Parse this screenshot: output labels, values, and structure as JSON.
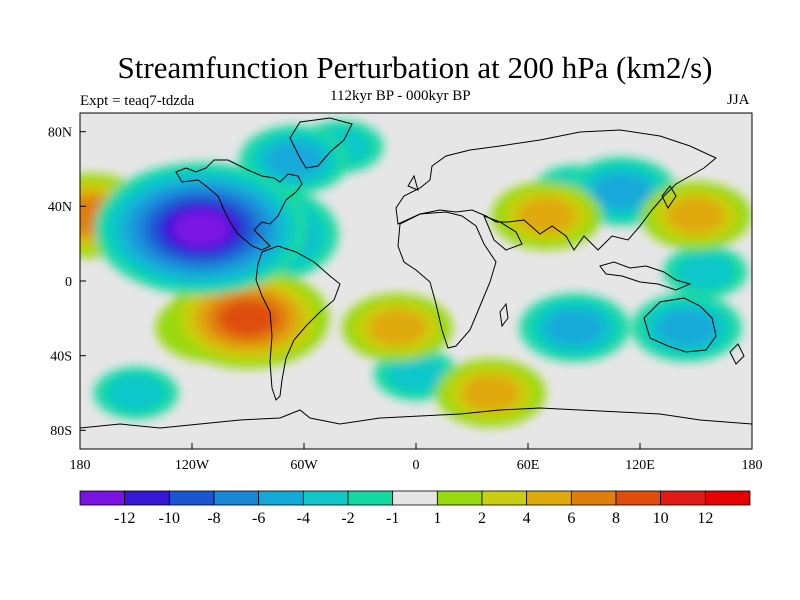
{
  "title": "Streamfunction Perturbation at 200 hPa (km2/s)",
  "experiment": "Expt = teaq7-tdzda",
  "period": "112kyr BP - 000kyr BP",
  "season": "JJA",
  "lat_labels": [
    "80N",
    "40N",
    "0",
    "40S",
    "80S"
  ],
  "lon_labels": [
    "180",
    "120W",
    "60W",
    "0",
    "60E",
    "120E",
    "180"
  ],
  "colorbar": {
    "labels": [
      "-12",
      "-10",
      "-8",
      "-6",
      "-4",
      "-2",
      "-1",
      "1",
      "2",
      "4",
      "6",
      "8",
      "10",
      "12"
    ],
    "levels": [
      -12,
      -10,
      -8,
      -6,
      -4,
      -2,
      -1,
      1,
      2,
      4,
      6,
      8,
      10,
      12
    ],
    "colors": [
      "#7a12e2",
      "#3717d6",
      "#1a56d2",
      "#1a86d8",
      "#12a9d9",
      "#11c7ca",
      "#13d9a1",
      "#e6e6e6",
      "#97d90f",
      "#c9cf10",
      "#e0a90c",
      "#df7e0a",
      "#df4d0a",
      "#e01b14",
      "#e70000"
    ]
  },
  "chart_data": {
    "type": "contour-map",
    "variable": "Streamfunction Perturbation at 200 hPa",
    "units": "km2/s",
    "xlim": [
      -180,
      180
    ],
    "ylim": [
      -90,
      90
    ],
    "lon_ticks": [
      -180,
      -120,
      -60,
      0,
      60,
      120,
      180
    ],
    "lat_ticks": [
      80,
      40,
      0,
      -40,
      -80
    ],
    "features": [
      {
        "lon": -115,
        "lat": 28,
        "value": -12
      },
      {
        "lon": -85,
        "lat": 25,
        "value": -8
      },
      {
        "lon": -65,
        "lat": 65,
        "value": -4
      },
      {
        "lon": -40,
        "lat": 72,
        "value": -2
      },
      {
        "lon": 110,
        "lat": 48,
        "value": -4
      },
      {
        "lon": 85,
        "lat": 48,
        "value": -2
      },
      {
        "lon": -90,
        "lat": -20,
        "value": 8
      },
      {
        "lon": -110,
        "lat": -25,
        "value": 4
      },
      {
        "lon": -10,
        "lat": -25,
        "value": 4
      },
      {
        "lon": 150,
        "lat": 35,
        "value": 4
      },
      {
        "lon": 70,
        "lat": 35,
        "value": 4
      },
      {
        "lon": -175,
        "lat": 35,
        "value": 6
      },
      {
        "lon": -150,
        "lat": -60,
        "value": -2
      },
      {
        "lon": 85,
        "lat": -25,
        "value": -4
      },
      {
        "lon": 145,
        "lat": -25,
        "value": -4
      },
      {
        "lon": 0,
        "lat": -50,
        "value": -2
      },
      {
        "lon": 40,
        "lat": -60,
        "value": 4
      },
      {
        "lon": 155,
        "lat": 5,
        "value": -2
      }
    ]
  }
}
